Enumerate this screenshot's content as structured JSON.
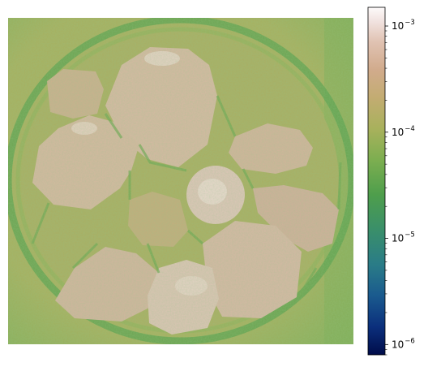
{
  "chart_data": {
    "type": "heatmap",
    "title": "",
    "xlabel": "",
    "ylabel": "",
    "axes_visible": false,
    "colormap": "gist_earth",
    "color_scale": "log",
    "colorbar": {
      "placement": "right",
      "range": [
        8e-07,
        0.0015
      ],
      "ticks": [
        {
          "value": 1e-06,
          "base": "10",
          "exp": "−6"
        },
        {
          "value": 1e-05,
          "base": "10",
          "exp": "−5"
        },
        {
          "value": 0.0001,
          "base": "10",
          "exp": "−4"
        },
        {
          "value": 0.001,
          "base": "10",
          "exp": "−3"
        }
      ]
    },
    "image": {
      "description_levels": {
        "background": 8e-05,
        "rim": 5e-05,
        "fragments": 0.0004,
        "bright_spots": 0.0012
      }
    }
  },
  "colors": {
    "cmap_stops": [
      "#000c4a",
      "#0b2f7c",
      "#1a5a8e",
      "#2a7c87",
      "#3a8f6a",
      "#4e9e4c",
      "#7cae50",
      "#a8b15c",
      "#c3ac72",
      "#d1ab8c",
      "#e0c2b2",
      "#f1e3e0",
      "#fdfafa"
    ]
  }
}
